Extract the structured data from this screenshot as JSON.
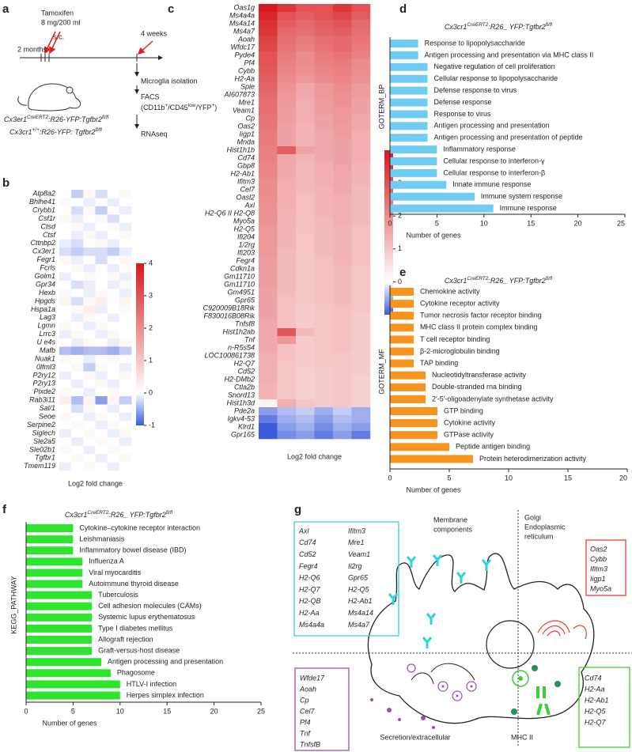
{
  "panel_labels": [
    "a",
    "b",
    "c",
    "d",
    "e",
    "f",
    "g"
  ],
  "panel_a": {
    "start": "2 months",
    "treatment": "Tamoxifen",
    "dose": "8 mg/200 ml",
    "route": "s.c.",
    "wait": "4 weeks",
    "isolation": "Microglia isolation",
    "sorting": "FACS",
    "gates": [
      {
        "text": "(CD11b"
      },
      {
        "text": "+",
        "sup": true
      },
      {
        "text": "/CD45"
      },
      {
        "text": "low",
        "sup": true
      },
      {
        "text": "/YFP"
      },
      {
        "text": "+",
        "sup": true
      },
      {
        "text": ")"
      }
    ],
    "sequencing": "RNAseq",
    "genotypes": [
      [
        {
          "text": "Cx3er1"
        },
        {
          "text": "CreERT2",
          "sup": true
        },
        {
          "text": ":R26-YFP:Tgfbr2"
        },
        {
          "text": "fl/fl",
          "sup": true
        }
      ],
      [
        {
          "text": "Cx3cr1"
        },
        {
          "text": "+/+",
          "sup": true
        },
        {
          "text": ":R26-YFP: Tgfbr2"
        },
        {
          "text": "fl/fl",
          "sup": true
        }
      ]
    ]
  },
  "chart_data": [
    {
      "type": "heatmap",
      "xlabel": "Log2 fold change",
      "zlim": [
        -1,
        4
      ],
      "zticks": [
        4,
        3,
        2,
        1,
        0,
        -1
      ],
      "colors": [
        "#3b5bdb",
        "#ffffff",
        "#d7191c"
      ],
      "rows": [
        "Atp8a2",
        "Bhlhe41",
        "Crybb1",
        "Csf1r",
        "Ctsd",
        "Ctsf",
        "Cttnbp2",
        "Cx3er1",
        "Fegr1",
        "Fcrls",
        "Golm1",
        "Gpr34",
        "Hexb",
        "Hpgds",
        "Hspa1a",
        "Lag3",
        "Lgmn",
        "Lrrc3",
        "U e4s",
        "Mafb",
        "Nuak1",
        "0lfml3",
        "P2ry12",
        "P2ry13",
        "Plxde2",
        "Rab3i11",
        "Sal/1",
        "Seoe",
        "Serpine2",
        "Siglech",
        "Sle2a5",
        "Sle02b1",
        "Tgfbr1",
        "Tmem119"
      ],
      "values": [
        [
          0,
          -0.3,
          0.1,
          -0.2,
          0,
          0.1
        ],
        [
          0.1,
          0,
          -0.1,
          0.1,
          -0.1,
          0
        ],
        [
          0,
          -0.2,
          0.1,
          -0.3,
          0,
          -0.1
        ],
        [
          0.1,
          -0.1,
          0,
          0.1,
          -0.2,
          0
        ],
        [
          0,
          0.1,
          -0.1,
          0,
          0.1,
          -0.1
        ],
        [
          0,
          -0.1,
          0.1,
          -0.1,
          0,
          0.1
        ],
        [
          -0.1,
          -0.2,
          0,
          0.1,
          -0.1,
          0
        ],
        [
          -0.2,
          -0.3,
          -0.2,
          -0.2,
          -0.3,
          -0.1
        ],
        [
          0.1,
          -0.1,
          0,
          -0.2,
          0,
          0.1
        ],
        [
          0,
          0.1,
          -0.1,
          0,
          -0.1,
          0
        ],
        [
          -0.1,
          0,
          0.1,
          0,
          0.1,
          -0.1
        ],
        [
          0,
          -0.2,
          -0.1,
          0,
          -0.1,
          0.1
        ],
        [
          0.1,
          0,
          -0.1,
          0.1,
          0,
          -0.1
        ],
        [
          0.2,
          -0.2,
          0.1,
          0.3,
          0,
          0.2
        ],
        [
          0,
          0.1,
          0.3,
          -0.1,
          0,
          0.1
        ],
        [
          0,
          -0.1,
          0.1,
          0,
          -0.1,
          0
        ],
        [
          0.1,
          0,
          -0.1,
          0.1,
          0,
          0
        ],
        [
          -0.1,
          0.1,
          0,
          -0.1,
          0.1,
          0
        ],
        [
          0,
          -0.1,
          0.1,
          0,
          -0.1,
          0.1
        ],
        [
          -0.4,
          -0.5,
          -0.4,
          -0.4,
          -0.5,
          -0.3
        ],
        [
          0.1,
          0,
          -0.1,
          0,
          0.1,
          0
        ],
        [
          0,
          0.1,
          -0.3,
          0.1,
          0,
          -0.1
        ],
        [
          -0.1,
          0,
          0.1,
          -0.1,
          0,
          0.1
        ],
        [
          0,
          -0.1,
          0,
          0.1,
          -0.1,
          0
        ],
        [
          0.1,
          0,
          -0.1,
          0,
          0.1,
          0
        ],
        [
          0.3,
          -0.4,
          0.2,
          -0.6,
          0.2,
          -0.3
        ],
        [
          0,
          -0.2,
          0.1,
          0,
          -0.1,
          0
        ],
        [
          0.1,
          0,
          -0.1,
          0.1,
          0,
          -0.1
        ],
        [
          0,
          0.1,
          0,
          -0.1,
          0.1,
          0
        ],
        [
          -0.1,
          0,
          0.1,
          0,
          -0.1,
          0.1
        ],
        [
          0,
          -0.1,
          0,
          0.1,
          0,
          -0.1
        ],
        [
          0.1,
          0,
          -0.1,
          0,
          0.1,
          0
        ],
        [
          0,
          0.1,
          0,
          -0.1,
          0,
          0.1
        ],
        [
          -0.1,
          0,
          0.1,
          0,
          -0.1,
          0
        ]
      ]
    },
    {
      "type": "heatmap",
      "xlabel": "Log2 fold change",
      "zlim": [
        -1,
        4
      ],
      "zticks": [
        4,
        3,
        2,
        1,
        0,
        -1
      ],
      "colors": [
        "#3b5bdb",
        "#ffffff",
        "#d7191c"
      ],
      "rows": [
        "Oas1g",
        "Ms4a4a",
        "Ms4a14",
        "Ms4a7",
        "Aoah",
        "Wfdc17",
        "Pyde4",
        "Pf4",
        "Cybb",
        "H2-Aa",
        "Spie",
        "AI607873",
        "Mre1",
        "Veam1",
        "Cp",
        "Oas2",
        "Iigp1",
        "Mnda",
        "Hist1h1b",
        "Cd74",
        "Gbp8",
        "H2-Ab1",
        "Ifitm3",
        "Cel7",
        "Oasl2",
        "Axl",
        "H2-Q6 II H2-Q8",
        "Myo5a",
        "H2-Q5",
        "Ifi204",
        "1/2rg",
        "Ifi203",
        "Fegr4",
        "Cdkn1a",
        "Gm11710",
        "Gm11710",
        "Gm4951",
        "Gpr65",
        "C920009B18Rik",
        "F830016B08Rik",
        "Tnfsf8",
        "Hist1h2ab",
        "Tnf",
        "n-R5s54",
        "LOC100861738",
        "H2-Q7",
        "Cd52",
        "H2-DMb2",
        "Ctla2b",
        "Snord13",
        "Hist1h3d",
        "Pde2a",
        "Igkv4-53",
        "Klrd1",
        "Gpr165"
      ],
      "values": [
        [
          4,
          3.5,
          3,
          3,
          3.5,
          3
        ],
        [
          3.8,
          3,
          2.8,
          3,
          3.2,
          2.8
        ],
        [
          3.6,
          2.8,
          2.6,
          2.8,
          3,
          2.6
        ],
        [
          3.5,
          2.6,
          2.5,
          2.7,
          2.8,
          2.5
        ],
        [
          3.3,
          2.5,
          2.3,
          2.5,
          2.6,
          2.4
        ],
        [
          3.2,
          2.4,
          2.2,
          2.4,
          2.6,
          2.3
        ],
        [
          3,
          2.3,
          2,
          2.3,
          2.4,
          2.2
        ],
        [
          3,
          2.2,
          2,
          2.2,
          2.3,
          2
        ],
        [
          2.9,
          2.1,
          1.9,
          2.1,
          2.2,
          2
        ],
        [
          2.8,
          2,
          1.8,
          2,
          2.1,
          1.9
        ],
        [
          2.7,
          1.9,
          1.5,
          1.8,
          2,
          1.7
        ],
        [
          2.6,
          1.8,
          1.5,
          1.8,
          1.9,
          1.7
        ],
        [
          2.5,
          1.8,
          1.4,
          1.7,
          1.9,
          1.6
        ],
        [
          2.5,
          1.7,
          1.4,
          1.7,
          1.8,
          1.6
        ],
        [
          2.4,
          1.7,
          1.4,
          1.6,
          1.8,
          1.5
        ],
        [
          2.4,
          1.6,
          1.3,
          1.6,
          1.7,
          1.5
        ],
        [
          2.3,
          1.6,
          1.3,
          1.5,
          1.7,
          1.4
        ],
        [
          2.3,
          1.6,
          1.3,
          1.5,
          1.6,
          1.4
        ],
        [
          2.2,
          2.8,
          1.6,
          1.5,
          1.6,
          1.4
        ],
        [
          2.2,
          1.5,
          1.3,
          1.5,
          1.6,
          1.4
        ],
        [
          2.1,
          1.5,
          1.2,
          1.4,
          1.6,
          1.3
        ],
        [
          2.1,
          1.5,
          1.2,
          1.4,
          1.5,
          1.3
        ],
        [
          2,
          1.4,
          1.2,
          1.4,
          1.5,
          1.3
        ],
        [
          2,
          1.4,
          1.2,
          1.3,
          1.5,
          1.2
        ],
        [
          2,
          1.4,
          1.1,
          1.3,
          1.4,
          1.2
        ],
        [
          1.9,
          1.4,
          1.1,
          1.3,
          1.4,
          1.2
        ],
        [
          1.9,
          1.3,
          1.1,
          1.3,
          1.4,
          1.2
        ],
        [
          1.9,
          1.3,
          1.1,
          1.2,
          1.4,
          1.2
        ],
        [
          1.8,
          1.3,
          1.1,
          1.2,
          1.3,
          1.1
        ],
        [
          1.8,
          1.3,
          1,
          1.2,
          1.3,
          1.1
        ],
        [
          1.8,
          1.3,
          1,
          1.2,
          1.3,
          1.1
        ],
        [
          1.8,
          1.2,
          1,
          1.2,
          1.3,
          1.1
        ],
        [
          1.7,
          1.2,
          1,
          1.1,
          1.3,
          1.1
        ],
        [
          1.7,
          1.2,
          1,
          1.1,
          1.2,
          1
        ],
        [
          1.7,
          1.2,
          1,
          1.1,
          1.2,
          1
        ],
        [
          1.7,
          1.2,
          1,
          1.1,
          1.2,
          1
        ],
        [
          1.6,
          1.2,
          1,
          1.1,
          1.2,
          1
        ],
        [
          1.6,
          1.1,
          1,
          1.1,
          1.2,
          1
        ],
        [
          1.6,
          1.1,
          0.9,
          1,
          1.1,
          1
        ],
        [
          1.6,
          1.1,
          0.9,
          1,
          1.1,
          0.9
        ],
        [
          1.5,
          1.1,
          0.9,
          1,
          1.1,
          0.9
        ],
        [
          1.5,
          2.9,
          1.2,
          1,
          1.1,
          0.9
        ],
        [
          1.5,
          1.8,
          0.9,
          1,
          1.1,
          0.9
        ],
        [
          1.5,
          1.1,
          0.9,
          1,
          1.1,
          0.9
        ],
        [
          1.4,
          1.1,
          0.9,
          1,
          1,
          0.9
        ],
        [
          1.4,
          1,
          0.9,
          1,
          1,
          0.9
        ],
        [
          1.4,
          1,
          0.8,
          0.9,
          1,
          0.9
        ],
        [
          1.4,
          1,
          0.8,
          0.9,
          1,
          0.8
        ],
        [
          1.3,
          1,
          0.8,
          0.9,
          1,
          0.8
        ],
        [
          1.3,
          1,
          0.8,
          0.9,
          1,
          0.8
        ],
        [
          0.2,
          1.4,
          1,
          0.9,
          1,
          0.8
        ],
        [
          -0.6,
          -0.4,
          -0.3,
          -0.5,
          -0.3,
          -0.5
        ],
        [
          -0.8,
          -0.5,
          -0.4,
          -0.6,
          -0.4,
          -0.5
        ],
        [
          -1,
          -0.6,
          -0.5,
          -0.7,
          -0.5,
          -0.6
        ],
        [
          -1,
          -0.7,
          -0.6,
          -0.8,
          -0.6,
          -0.8
        ]
      ]
    },
    {
      "type": "barh",
      "title": [
        {
          "text": "Cx3cr1"
        },
        {
          "text": "CreERT2",
          "sup": true
        },
        {
          "text": ":R26_ YFP:Tgfbr2"
        },
        {
          "text": "fl/fl",
          "sup": true
        }
      ],
      "ylabel": "GOTERM_BP",
      "xlabel": "Number of genes",
      "color": "#6fcdf3",
      "categories": [
        "Response to lipopolysaccharide",
        "Antigen processing and presentation via MHC class II",
        "Negative regulation of cell proliferation",
        "Cellular response to lipopolysaccharide",
        "Defense response to virus",
        "Defense response",
        "Response to virus",
        "Antigen processing and presentation",
        "Antigen processing and presentation of peptide",
        "Inflammatory response",
        "Cellular response to interferon-γ",
        "Cellular response to interferon-β",
        "Innate immune response",
        "Immune system response",
        "Immune response"
      ],
      "values": [
        3,
        3,
        4,
        4,
        4,
        4,
        4,
        4,
        4,
        5,
        5,
        5,
        6,
        9,
        11
      ],
      "xlim": [
        0,
        25
      ],
      "xticks": [
        0,
        5,
        10,
        15,
        20,
        25
      ]
    },
    {
      "type": "barh",
      "title": [
        {
          "text": "Cx3cr1"
        },
        {
          "text": "CreERT2",
          "sup": true
        },
        {
          "text": ":R26_ YFP:Tgfbr2"
        },
        {
          "text": "fl/fl",
          "sup": true
        }
      ],
      "ylabel": "GOTERM_MF",
      "xlabel": "Number of genes",
      "color": "#f7941d",
      "categories": [
        "Chemokine activity",
        "Cytokine receptor activity",
        "Tumor necrosis factor receptor binding",
        "MHC class II protein complex binding",
        "T cell receptor binding",
        "β-2-microglobulin binding",
        "TAP binding",
        "Nucleotidyltransferase activity",
        "Double-stranded rna binding",
        "2′-5′-oligoadenylate synthetase activity",
        "GTP binding",
        "Cytokine activity",
        "GTPase activity",
        "Peptide antigen binding",
        "Protein heterodimerization activity"
      ],
      "values": [
        2,
        2,
        2,
        2,
        2,
        2,
        2,
        3,
        3,
        3,
        4,
        4,
        4,
        5,
        7
      ],
      "xlim": [
        0,
        20
      ],
      "xticks": [
        0,
        5,
        10,
        15,
        20
      ]
    },
    {
      "type": "barh",
      "title": [
        {
          "text": "Cx3cr1"
        },
        {
          "text": "CreERT2",
          "sup": true
        },
        {
          "text": ":R26_ YFP:Tgfbr2"
        },
        {
          "text": "fl/fl",
          "sup": true
        }
      ],
      "ylabel": "KEGG_PATHWAY",
      "xlabel": "Number of genes",
      "color": "#2ee52e",
      "categories": [
        "Cytokine–cytokine receptor interaction",
        "Leishmaniasis",
        "Inflammatory bowel disease (IBD)",
        "Influenza A",
        "Viral myocarditis",
        "Autoimmune thyroid disease",
        "Tuberculosis",
        "Cell adhesion molecules (CAMs)",
        "Systemic lupus erythematosus",
        "Type I diabetes mellitus",
        "Allograft rejection",
        "Graft-versus-host disease",
        "Antigen processing and presentation",
        "Phagosome",
        "HTLV-I infection",
        "Herpes simplex infection"
      ],
      "values": [
        5,
        5,
        5,
        6,
        6,
        6,
        7,
        7,
        7,
        7,
        7,
        7,
        8,
        9,
        10,
        10
      ],
      "xlim": [
        0,
        25
      ],
      "xticks": [
        0,
        5,
        10,
        15,
        20,
        25
      ]
    }
  ],
  "panel_g": {
    "membrane": [
      "Membrane",
      "components"
    ],
    "golgi": [
      "Golgi",
      "Endoplasmic",
      "reticulum"
    ],
    "secretion": "Secretion/extracellular",
    "mhc": "MHC II",
    "boxes": [
      {
        "color": "#2fd3dc",
        "genes": [
          "Axl",
          "Cd74",
          "Cd52",
          "Fegr4",
          "H2-Q6",
          "H2-Q7",
          "H2-QB",
          "H2-Aa",
          "Ms4a4a",
          "Ifitm3",
          "Mre1",
          "Veam1",
          "Il2rg",
          "Gpr65",
          "H2-Q5",
          "H2-Ab1",
          "Ms4a14",
          "Ms4a7"
        ]
      },
      {
        "color": "#e8403a",
        "genes": [
          "Oas2",
          "Cybb",
          "Ifitm3",
          "Iigp1",
          "Myo5a"
        ]
      },
      {
        "color": "#9b4dbb",
        "genes": [
          "Wfde17",
          "Aoah",
          "Cp",
          "Cel7",
          "Pf4",
          "Tnf",
          "TnfsfB"
        ]
      },
      {
        "color": "#3bcf3b",
        "genes": [
          "Cd74",
          "H2-Aa",
          "H2-Ab1",
          "H2-Q5",
          "H2-Q7"
        ]
      }
    ]
  }
}
